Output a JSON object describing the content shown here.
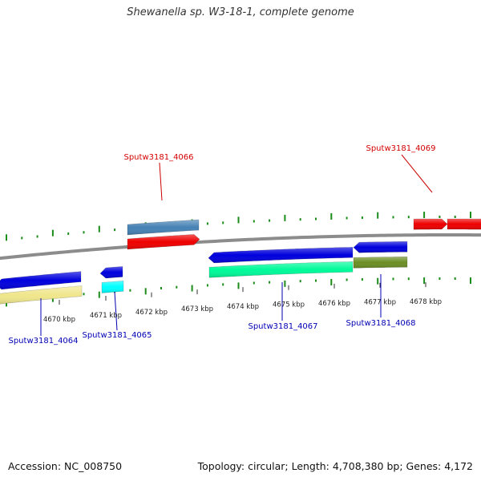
{
  "title": "Shewanella sp. W3-18-1, complete genome",
  "footer": {
    "accession": "Accession: NC_008750",
    "summary": "Topology: circular; Length: 4,708,380 bp; Genes: 4,172"
  },
  "colors": {
    "backbone": "#8c8c8c",
    "tick": "#1a8c1a",
    "kbp_tick": "#333333",
    "label_forward": "#d40000",
    "label_reverse": "#0000b4",
    "leader_forward": "#cc0000",
    "leader_reverse": "#0000b4"
  },
  "axis": {
    "kbp_labels": [
      "4670 kbp",
      "4671 kbp",
      "4672 kbp",
      "4673 kbp",
      "4674 kbp",
      "4675 kbp",
      "4676 kbp",
      "4677 kbp",
      "4678 kbp"
    ]
  },
  "genes": [
    {
      "label": "Sputw3181_4064",
      "strand": "reverse"
    },
    {
      "label": "Sputw3181_4065",
      "strand": "reverse"
    },
    {
      "label": "Sputw3181_4066",
      "strand": "forward"
    },
    {
      "label": "Sputw3181_4067",
      "strand": "reverse"
    },
    {
      "label": "Sputw3181_4068",
      "strand": "reverse"
    },
    {
      "label": "Sputw3181_4069",
      "strand": "forward"
    }
  ]
}
